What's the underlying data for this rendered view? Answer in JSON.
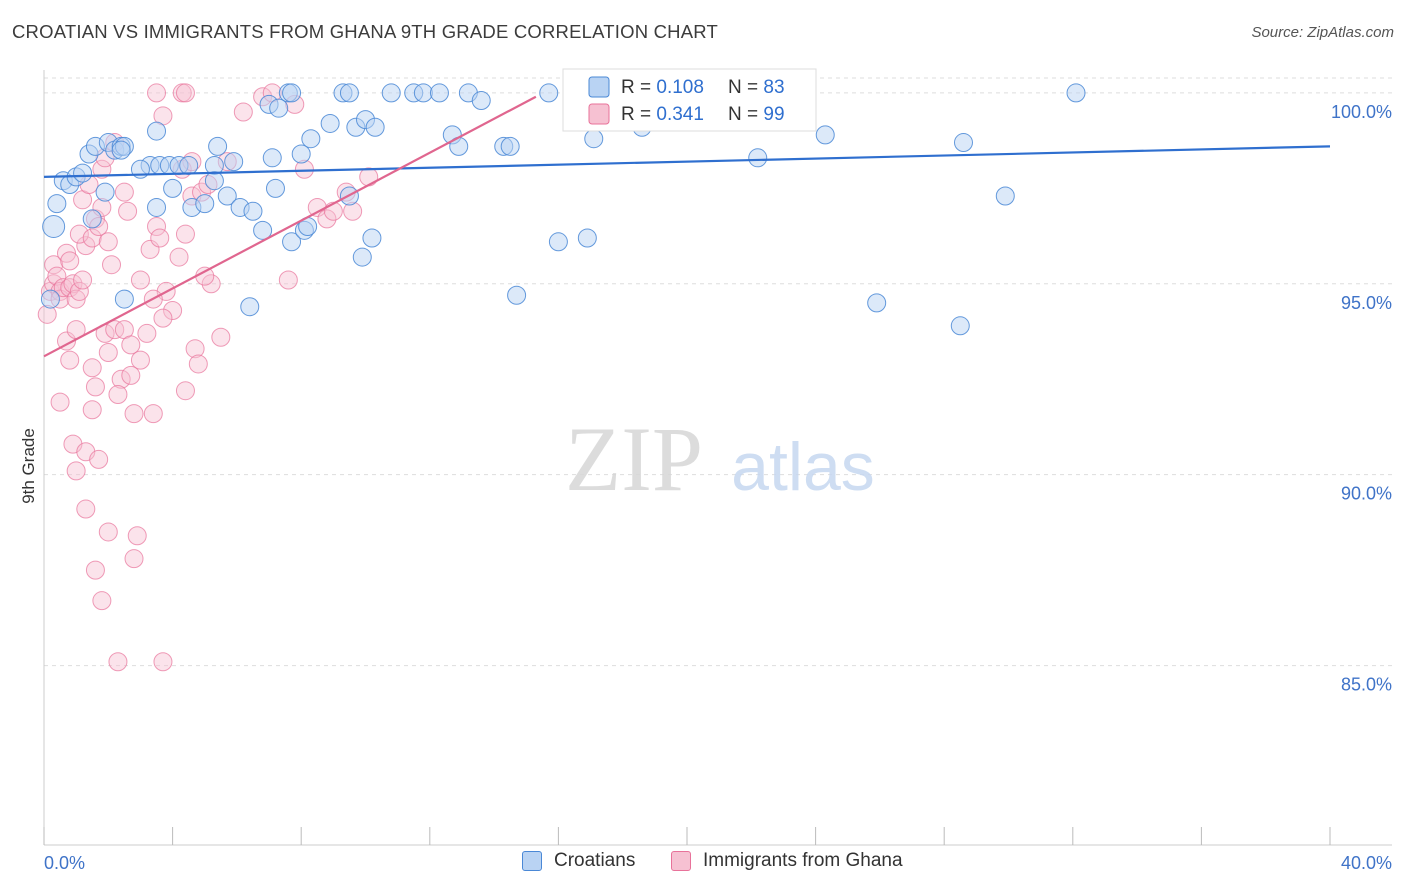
{
  "header": {
    "title": "CROATIAN VS IMMIGRANTS FROM GHANA 9TH GRADE CORRELATION CHART",
    "source": "Source: ZipAtlas.com"
  },
  "watermark": {
    "zip": "ZIP",
    "atlas": "atlas"
  },
  "colors": {
    "blue": "#4a88d6",
    "blue_fill": "#b9d3f3",
    "blue_line": "#2f6fcf",
    "pink": "#e8729a",
    "pink_fill": "#f6c1d2",
    "pink_line": "#e0668f",
    "axis_label": "#3f73c8",
    "grid": "#dddddd"
  },
  "legend_stats": [
    {
      "r_label": "R = ",
      "r_value": "0.108",
      "n_label": "N = ",
      "n_value": "83"
    },
    {
      "r_label": "R = ",
      "r_value": "0.341",
      "n_label": "N = ",
      "n_value": "99"
    }
  ],
  "chart_data": {
    "type": "scatter",
    "title": "CROATIAN VS IMMIGRANTS FROM GHANA 9TH GRADE CORRELATION CHART",
    "xlabel": "",
    "ylabel": "9th Grade",
    "xlim": [
      0,
      40
    ],
    "ylim": [
      80.3,
      100.6
    ],
    "x_tick_labels": [
      "0.0%",
      "40.0%"
    ],
    "y_ticks": [
      85,
      90,
      95,
      100
    ],
    "y_tick_labels": [
      "85.0%",
      "90.0%",
      "95.0%",
      "100.0%"
    ],
    "grid": true,
    "legend_position": "top-center",
    "series": [
      {
        "name": "Croatians",
        "color": "#4a88d6",
        "R": 0.108,
        "N": 83,
        "trend": {
          "x": [
            0,
            40
          ],
          "y": [
            97.8,
            98.6
          ]
        },
        "points": [
          [
            0.3,
            96.5
          ],
          [
            0.4,
            97.1
          ],
          [
            0.6,
            97.7
          ],
          [
            0.8,
            97.6
          ],
          [
            1.0,
            97.8
          ],
          [
            1.2,
            97.9
          ],
          [
            1.4,
            98.4
          ],
          [
            1.6,
            98.6
          ],
          [
            2.0,
            98.7
          ],
          [
            2.2,
            98.5
          ],
          [
            2.4,
            98.6
          ],
          [
            2.5,
            98.6
          ],
          [
            1.9,
            97.4
          ],
          [
            1.5,
            96.7
          ],
          [
            3.3,
            98.1
          ],
          [
            3.6,
            98.1
          ],
          [
            3.9,
            98.1
          ],
          [
            4.2,
            98.1
          ],
          [
            4.5,
            98.1
          ],
          [
            5.3,
            98.1
          ],
          [
            5.9,
            98.2
          ],
          [
            3.5,
            97.0
          ],
          [
            4.0,
            97.5
          ],
          [
            4.6,
            97.0
          ],
          [
            5.0,
            97.1
          ],
          [
            5.3,
            97.7
          ],
          [
            5.7,
            97.3
          ],
          [
            6.1,
            97.0
          ],
          [
            6.5,
            96.9
          ],
          [
            7.0,
            99.7
          ],
          [
            7.3,
            99.6
          ],
          [
            7.6,
            100.0
          ],
          [
            7.7,
            100.0
          ],
          [
            8.0,
            98.4
          ],
          [
            8.3,
            98.8
          ],
          [
            8.9,
            99.2
          ],
          [
            9.3,
            100.0
          ],
          [
            9.5,
            100.0
          ],
          [
            9.7,
            99.1
          ],
          [
            10.0,
            99.3
          ],
          [
            10.3,
            99.1
          ],
          [
            10.8,
            100.0
          ],
          [
            11.5,
            100.0
          ],
          [
            11.8,
            100.0
          ],
          [
            12.3,
            100.0
          ],
          [
            12.7,
            98.9
          ],
          [
            12.9,
            98.6
          ],
          [
            13.2,
            100.0
          ],
          [
            13.6,
            99.8
          ],
          [
            14.3,
            98.6
          ],
          [
            14.5,
            98.6
          ],
          [
            7.1,
            98.3
          ],
          [
            6.8,
            96.4
          ],
          [
            7.7,
            96.1
          ],
          [
            7.2,
            97.5
          ],
          [
            8.1,
            96.4
          ],
          [
            8.2,
            96.5
          ],
          [
            9.5,
            97.3
          ],
          [
            9.9,
            95.7
          ],
          [
            10.2,
            96.2
          ],
          [
            5.4,
            98.6
          ],
          [
            3.5,
            99.0
          ],
          [
            2.4,
            98.5
          ],
          [
            2.5,
            94.6
          ],
          [
            6.4,
            94.4
          ],
          [
            15.7,
            100.0
          ],
          [
            16.0,
            96.1
          ],
          [
            16.9,
            96.2
          ],
          [
            17.1,
            98.8
          ],
          [
            17.9,
            100.0
          ],
          [
            18.4,
            100.0
          ],
          [
            18.6,
            99.1
          ],
          [
            22.2,
            98.3
          ],
          [
            24.3,
            98.9
          ],
          [
            28.6,
            98.7
          ],
          [
            29.9,
            97.3
          ],
          [
            32.1,
            100.0
          ],
          [
            14.7,
            94.7
          ],
          [
            25.9,
            94.5
          ],
          [
            28.5,
            93.9
          ],
          [
            19.0,
            100.0
          ],
          [
            0.2,
            94.6
          ],
          [
            3.0,
            98.0
          ]
        ]
      },
      {
        "name": "Immigrants from Ghana",
        "color": "#e8729a",
        "R": 0.341,
        "N": 99,
        "trend": {
          "x": [
            0,
            15.3
          ],
          "y": [
            93.1,
            99.9
          ]
        },
        "points": [
          [
            0.1,
            94.2
          ],
          [
            0.2,
            94.8
          ],
          [
            0.3,
            95.0
          ],
          [
            0.3,
            95.5
          ],
          [
            0.4,
            95.2
          ],
          [
            0.5,
            94.8
          ],
          [
            0.5,
            94.6
          ],
          [
            0.6,
            94.9
          ],
          [
            0.7,
            95.8
          ],
          [
            0.8,
            95.6
          ],
          [
            0.8,
            94.9
          ],
          [
            0.9,
            95.0
          ],
          [
            1.0,
            94.6
          ],
          [
            1.1,
            94.8
          ],
          [
            1.2,
            95.1
          ],
          [
            0.7,
            93.5
          ],
          [
            0.8,
            93.0
          ],
          [
            1.0,
            93.8
          ],
          [
            1.3,
            96.0
          ],
          [
            1.1,
            96.3
          ],
          [
            1.5,
            96.2
          ],
          [
            1.6,
            96.7
          ],
          [
            1.7,
            96.5
          ],
          [
            1.8,
            97.0
          ],
          [
            2.0,
            96.1
          ],
          [
            2.1,
            95.5
          ],
          [
            1.2,
            97.2
          ],
          [
            1.4,
            97.6
          ],
          [
            1.8,
            98.0
          ],
          [
            1.9,
            98.3
          ],
          [
            2.2,
            98.7
          ],
          [
            2.5,
            97.4
          ],
          [
            2.6,
            96.9
          ],
          [
            1.9,
            93.7
          ],
          [
            2.2,
            93.8
          ],
          [
            2.5,
            93.8
          ],
          [
            2.7,
            93.4
          ],
          [
            3.0,
            93.0
          ],
          [
            3.2,
            93.7
          ],
          [
            2.0,
            93.2
          ],
          [
            2.4,
            92.5
          ],
          [
            2.7,
            92.6
          ],
          [
            1.5,
            92.8
          ],
          [
            1.6,
            92.3
          ],
          [
            2.3,
            92.1
          ],
          [
            1.5,
            91.7
          ],
          [
            2.8,
            91.6
          ],
          [
            3.4,
            91.6
          ],
          [
            0.5,
            91.9
          ],
          [
            0.9,
            90.8
          ],
          [
            1.3,
            90.6
          ],
          [
            1.7,
            90.4
          ],
          [
            1.0,
            90.1
          ],
          [
            3.3,
            95.9
          ],
          [
            3.5,
            96.5
          ],
          [
            3.6,
            96.2
          ],
          [
            3.8,
            94.8
          ],
          [
            4.0,
            94.3
          ],
          [
            4.2,
            95.7
          ],
          [
            4.4,
            96.3
          ],
          [
            4.6,
            97.3
          ],
          [
            4.9,
            97.4
          ],
          [
            5.1,
            97.6
          ],
          [
            5.2,
            95.0
          ],
          [
            5.0,
            95.2
          ],
          [
            4.3,
            98.0
          ],
          [
            4.6,
            98.2
          ],
          [
            5.7,
            98.2
          ],
          [
            6.2,
            99.5
          ],
          [
            6.8,
            99.9
          ],
          [
            7.1,
            100.0
          ],
          [
            7.8,
            99.7
          ],
          [
            8.1,
            98.0
          ],
          [
            8.5,
            97.0
          ],
          [
            8.8,
            96.7
          ],
          [
            9.0,
            96.9
          ],
          [
            9.4,
            97.4
          ],
          [
            9.6,
            96.9
          ],
          [
            10.1,
            97.8
          ],
          [
            7.6,
            95.1
          ],
          [
            5.5,
            93.6
          ],
          [
            4.7,
            93.3
          ],
          [
            4.8,
            92.9
          ],
          [
            4.4,
            92.2
          ],
          [
            3.7,
            94.1
          ],
          [
            3.4,
            94.6
          ],
          [
            3.0,
            95.1
          ],
          [
            3.5,
            100.0
          ],
          [
            4.3,
            100.0
          ],
          [
            4.4,
            100.0
          ],
          [
            3.7,
            99.4
          ],
          [
            1.3,
            89.1
          ],
          [
            2.0,
            88.5
          ],
          [
            2.9,
            88.4
          ],
          [
            1.6,
            87.5
          ],
          [
            2.8,
            87.8
          ],
          [
            1.8,
            86.7
          ],
          [
            2.3,
            85.1
          ],
          [
            3.7,
            85.1
          ]
        ]
      }
    ]
  },
  "bottom_legend": [
    {
      "label": "Croatians"
    },
    {
      "label": "Immigrants from Ghana"
    }
  ]
}
